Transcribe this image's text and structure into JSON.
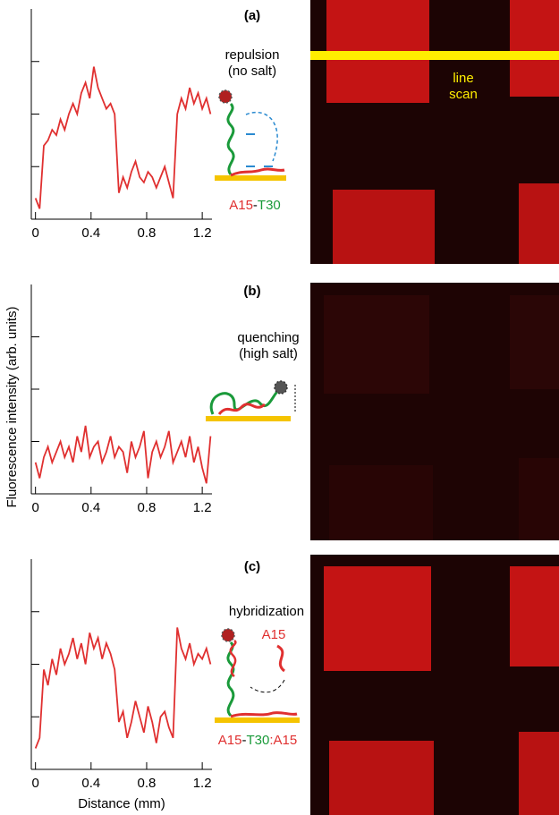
{
  "chart_data": [
    {
      "type": "line",
      "panel_label": "(a)",
      "caption": [
        "repulsion",
        "(no salt)"
      ],
      "strand_label": [
        {
          "text": "A15",
          "color": "#e03030"
        },
        {
          "text": "-",
          "color": "#000000"
        },
        {
          "text": "T30",
          "color": "#1a9a3a"
        }
      ],
      "image_label": [
        "line",
        "scan"
      ],
      "x": [
        0,
        0.03,
        0.06,
        0.09,
        0.12,
        0.15,
        0.18,
        0.21,
        0.24,
        0.27,
        0.3,
        0.33,
        0.36,
        0.39,
        0.42,
        0.45,
        0.48,
        0.51,
        0.54,
        0.57,
        0.6,
        0.63,
        0.66,
        0.69,
        0.72,
        0.75,
        0.78,
        0.81,
        0.84,
        0.87,
        0.9,
        0.93,
        0.96,
        0.99,
        1.02,
        1.05,
        1.08,
        1.11,
        1.14,
        1.17,
        1.2,
        1.23,
        1.26
      ],
      "series": [
        {
          "color": "#e03030",
          "values": [
            0.4,
            0.2,
            1.4,
            1.5,
            1.7,
            1.6,
            1.9,
            1.7,
            2.0,
            2.2,
            2.0,
            2.4,
            2.6,
            2.3,
            2.9,
            2.5,
            2.3,
            2.1,
            2.2,
            2.0,
            0.5,
            0.8,
            0.6,
            0.9,
            1.1,
            0.8,
            0.7,
            0.9,
            0.8,
            0.6,
            0.8,
            1.0,
            0.7,
            0.4,
            2.0,
            2.3,
            2.1,
            2.5,
            2.2,
            2.4,
            2.1,
            2.3,
            2.0
          ]
        }
      ],
      "xlim": [
        -0.03,
        1.27
      ],
      "xticks": [
        0,
        0.4,
        0.8,
        1.2
      ],
      "ylim": [
        0,
        4
      ],
      "yticks": [
        1,
        2,
        3
      ]
    },
    {
      "type": "line",
      "panel_label": "(b)",
      "caption": [
        "quenching",
        "(high salt)"
      ],
      "y_label": "Fluorescence intensity (arb. units)",
      "x": [
        0,
        0.03,
        0.06,
        0.09,
        0.12,
        0.15,
        0.18,
        0.21,
        0.24,
        0.27,
        0.3,
        0.33,
        0.36,
        0.39,
        0.42,
        0.45,
        0.48,
        0.51,
        0.54,
        0.57,
        0.6,
        0.63,
        0.66,
        0.69,
        0.72,
        0.75,
        0.78,
        0.81,
        0.84,
        0.87,
        0.9,
        0.93,
        0.96,
        0.99,
        1.02,
        1.05,
        1.08,
        1.11,
        1.14,
        1.17,
        1.2,
        1.23,
        1.26
      ],
      "series": [
        {
          "color": "#e03030",
          "values": [
            0.6,
            0.3,
            0.7,
            0.9,
            0.6,
            0.8,
            1.0,
            0.7,
            0.9,
            0.6,
            1.1,
            0.8,
            1.3,
            0.7,
            0.9,
            1.0,
            0.6,
            0.8,
            1.1,
            0.7,
            0.9,
            0.8,
            0.4,
            1.0,
            0.7,
            0.9,
            1.2,
            0.3,
            0.8,
            1.0,
            0.7,
            0.9,
            1.2,
            0.6,
            0.8,
            1.0,
            0.7,
            1.1,
            0.6,
            0.9,
            0.5,
            0.2,
            1.1
          ]
        }
      ],
      "xlim": [
        -0.03,
        1.27
      ],
      "xticks": [
        0,
        0.4,
        0.8,
        1.2
      ],
      "ylim": [
        0,
        4
      ],
      "yticks": [
        1,
        2,
        3
      ]
    },
    {
      "type": "line",
      "panel_label": "(c)",
      "caption": [
        "hybridization"
      ],
      "probe_label": "A15",
      "strand_label": [
        {
          "text": "A15",
          "color": "#e03030"
        },
        {
          "text": "-",
          "color": "#000000"
        },
        {
          "text": "T30",
          "color": "#1a9a3a"
        },
        {
          "text": ":A15",
          "color": "#e03030"
        }
      ],
      "x_label": "Distance (mm)",
      "x": [
        0,
        0.03,
        0.06,
        0.09,
        0.12,
        0.15,
        0.18,
        0.21,
        0.24,
        0.27,
        0.3,
        0.33,
        0.36,
        0.39,
        0.42,
        0.45,
        0.48,
        0.51,
        0.54,
        0.57,
        0.6,
        0.63,
        0.66,
        0.69,
        0.72,
        0.75,
        0.78,
        0.81,
        0.84,
        0.87,
        0.9,
        0.93,
        0.96,
        0.99,
        1.02,
        1.05,
        1.08,
        1.11,
        1.14,
        1.17,
        1.2,
        1.23,
        1.26
      ],
      "series": [
        {
          "color": "#e03030",
          "values": [
            0.4,
            0.6,
            1.9,
            1.6,
            2.1,
            1.8,
            2.3,
            2.0,
            2.2,
            2.5,
            2.1,
            2.4,
            2.0,
            2.6,
            2.3,
            2.5,
            2.1,
            2.4,
            2.2,
            1.9,
            0.9,
            1.1,
            0.6,
            0.9,
            1.3,
            1.0,
            0.7,
            1.2,
            0.9,
            0.5,
            1.0,
            1.1,
            0.8,
            0.6,
            2.7,
            2.3,
            2.1,
            2.4,
            2.0,
            2.2,
            2.1,
            2.3,
            2.0
          ]
        }
      ],
      "xlim": [
        -0.03,
        1.27
      ],
      "xticks": [
        0,
        0.4,
        0.8,
        1.2
      ],
      "ylim": [
        0,
        4
      ],
      "yticks": [
        1,
        2,
        3
      ]
    }
  ]
}
